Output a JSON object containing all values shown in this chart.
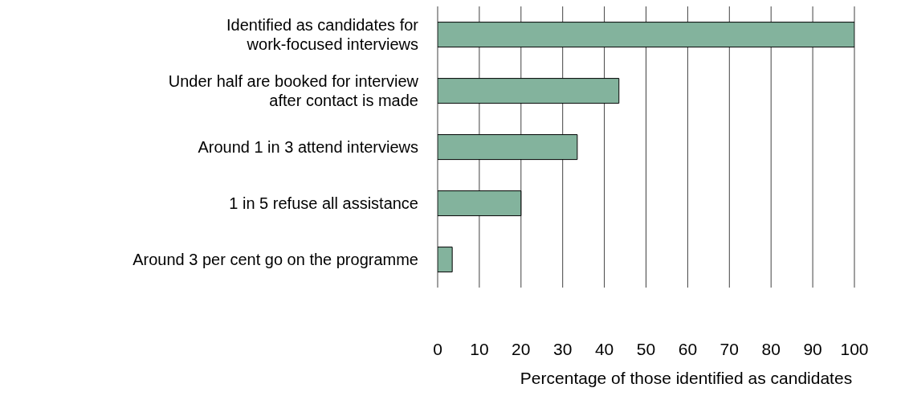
{
  "chart_data": {
    "type": "bar",
    "orientation": "horizontal",
    "xlabel": "Percentage of those identified as candidates",
    "categories": [
      "Identified as candidates for\nwork-focused interviews",
      "Under half are booked for interview\nafter contact is made",
      "Around 1 in 3 attend interviews",
      "1 in 5 refuse all assistance",
      "Around 3 per cent go on the programme"
    ],
    "values": [
      100,
      43.5,
      33.5,
      20,
      3.5
    ],
    "color": "#83b39d",
    "xlim": [
      0,
      100
    ],
    "xticks": [
      0,
      10,
      20,
      30,
      40,
      50,
      60,
      70,
      80,
      90,
      100
    ],
    "grid": "x"
  }
}
